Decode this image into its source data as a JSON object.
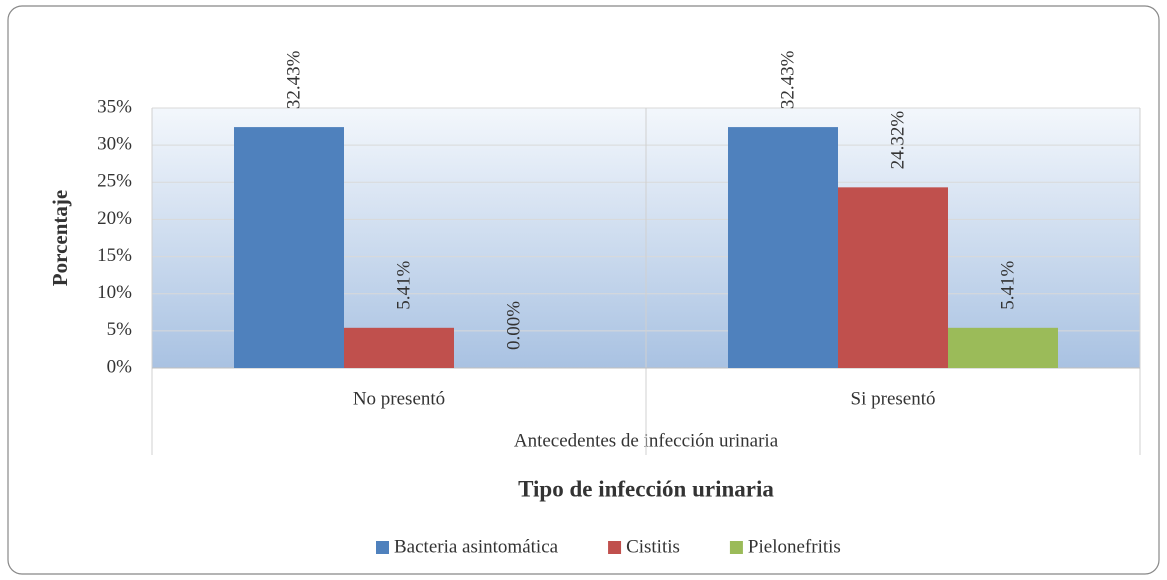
{
  "chart_data": {
    "type": "bar",
    "categories": [
      "No presentó",
      "Si presentó"
    ],
    "group_label": "Antecedentes de infección urinaria",
    "x_label": "Tipo de infección urinaria",
    "y_label": "Porcentaje",
    "series": [
      {
        "name": "Bacteria asintomática",
        "color": "#4f81bd",
        "values": [
          32.43,
          32.43
        ],
        "value_labels": [
          "32.43%",
          "32.43%"
        ]
      },
      {
        "name": "Cistitis",
        "color": "#c0504d",
        "values": [
          5.41,
          24.32
        ],
        "value_labels": [
          "5.41%",
          "24.32%"
        ]
      },
      {
        "name": "Pielonefritis",
        "color": "#9bbb59",
        "values": [
          0.0,
          5.41
        ],
        "value_labels": [
          "0.00%",
          "5.41%"
        ]
      }
    ],
    "ylim": [
      0,
      35
    ],
    "yticks": [
      {
        "value": 0,
        "label": "0%"
      },
      {
        "value": 5,
        "label": "5%"
      },
      {
        "value": 10,
        "label": "10%"
      },
      {
        "value": 15,
        "label": "15%"
      },
      {
        "value": 20,
        "label": "20%"
      },
      {
        "value": 25,
        "label": "25%"
      },
      {
        "value": 30,
        "label": "30%"
      },
      {
        "value": 35,
        "label": "35%"
      }
    ],
    "grid": true,
    "legend": "bottom"
  }
}
